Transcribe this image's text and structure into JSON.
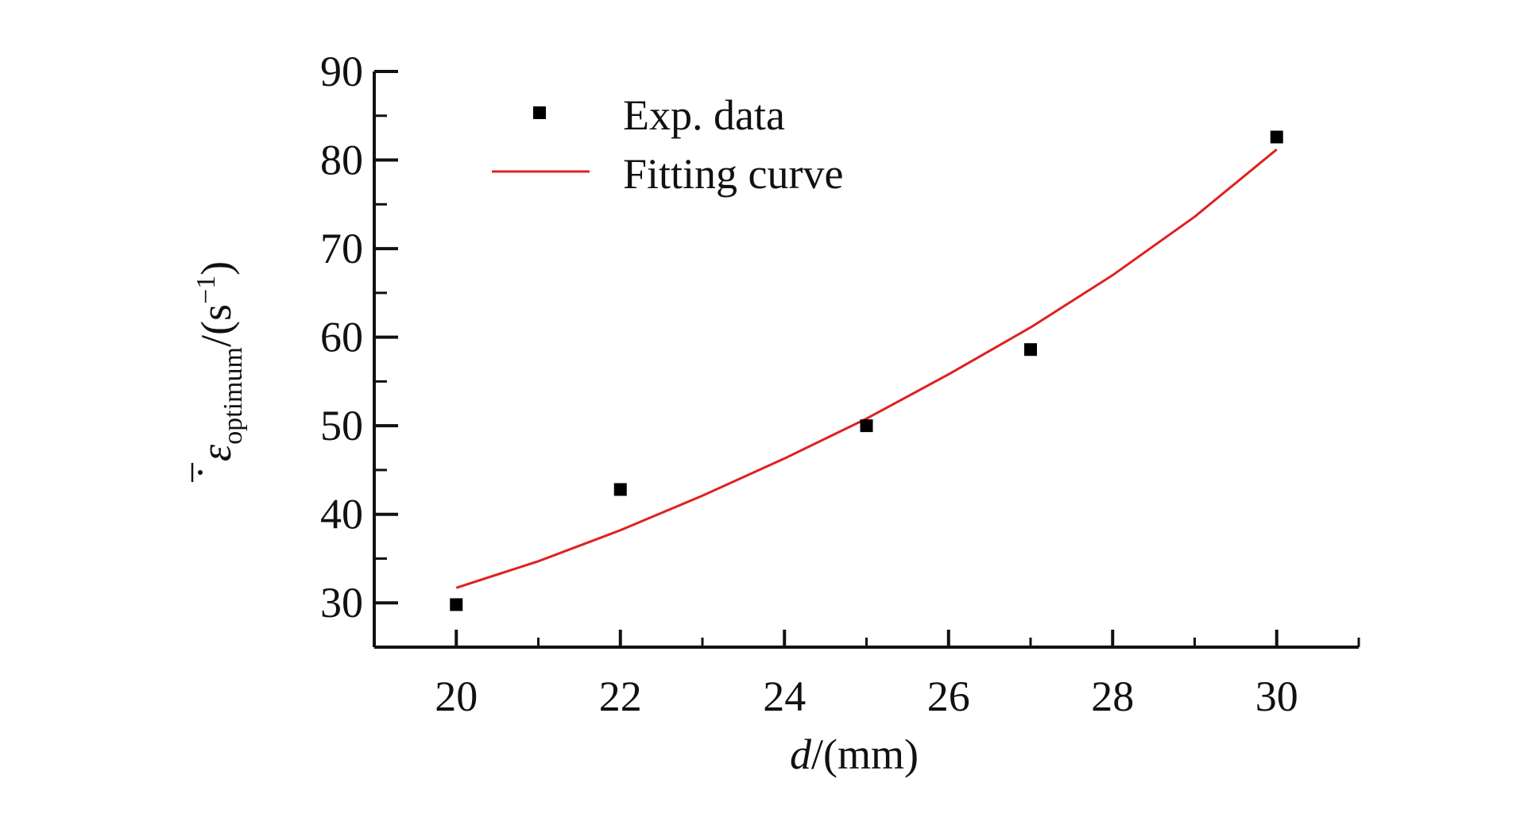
{
  "chart_data": {
    "type": "scatter",
    "title": "",
    "xlabel_var": "d",
    "xlabel_unit": "/(mm)",
    "ylabel_var": "ε",
    "ylabel_sub": "optimum",
    "ylabel_unit_open": "/(s",
    "ylabel_unit_sup": "−1",
    "ylabel_unit_close": ")",
    "xlim": [
      19,
      31
    ],
    "ylim": [
      25,
      90
    ],
    "x_ticks": [
      20,
      22,
      24,
      26,
      28,
      30
    ],
    "y_ticks": [
      30,
      40,
      50,
      60,
      70,
      80,
      90
    ],
    "x_tick_labels": [
      "20",
      "22",
      "24",
      "26",
      "28",
      "30"
    ],
    "y_tick_labels": [
      "30",
      "40",
      "50",
      "60",
      "70",
      "80",
      "90"
    ],
    "series": [
      {
        "name": "Exp. data",
        "kind": "scatter",
        "marker": "square",
        "color": "#000000",
        "x": [
          20,
          22,
          25,
          27,
          30
        ],
        "y": [
          29.8,
          42.8,
          50.0,
          58.6,
          82.6
        ]
      },
      {
        "name": "Fitting curve",
        "kind": "line",
        "color": "#e02020",
        "x": [
          20,
          21,
          22,
          23,
          24,
          25,
          26,
          27,
          28,
          29,
          30
        ],
        "y": [
          31.7,
          34.7,
          38.2,
          42.1,
          46.3,
          50.8,
          55.8,
          61.1,
          67.0,
          73.6,
          81.2
        ]
      }
    ],
    "legend": {
      "position": "top-left",
      "entries": [
        "Exp. data",
        "Fitting curve"
      ]
    }
  }
}
